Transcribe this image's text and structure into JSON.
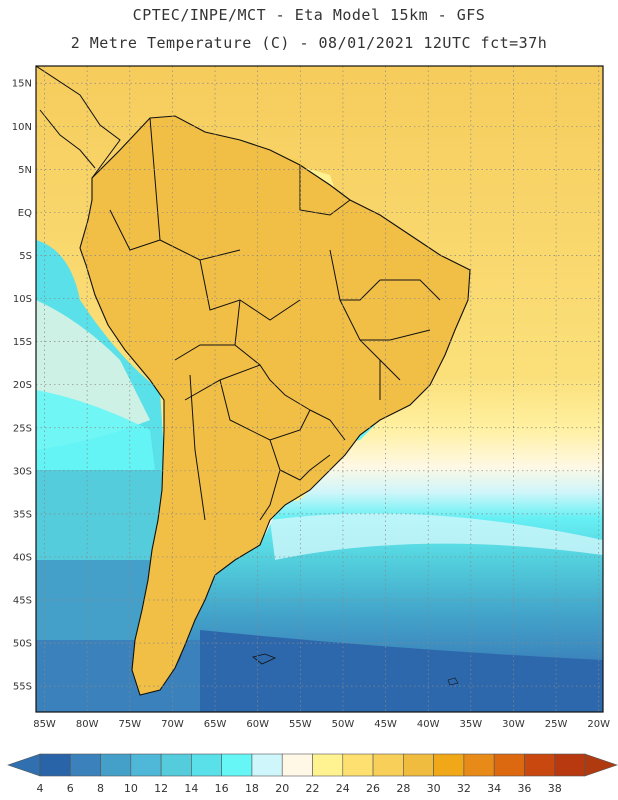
{
  "header": {
    "title_line1": "CPTEC/INPE/MCT -  Eta Model 15km - GFS",
    "title_line2": "2 Metre Temperature (C) - 08/01/2021 12UTC fct=37h"
  },
  "map": {
    "region": "South America",
    "lat_labels": [
      "15N",
      "10N",
      "5N",
      "EQ",
      "5S",
      "10S",
      "15S",
      "20S",
      "25S",
      "30S",
      "35S",
      "40S",
      "45S",
      "50S",
      "55S"
    ],
    "lat_values": [
      15,
      10,
      5,
      0,
      -5,
      -10,
      -15,
      -20,
      -25,
      -30,
      -35,
      -40,
      -45,
      -50,
      -55
    ],
    "lon_labels": [
      "85W",
      "80W",
      "75W",
      "70W",
      "65W",
      "60W",
      "55W",
      "50W",
      "45W",
      "40W",
      "35W",
      "30W",
      "25W",
      "20W"
    ],
    "lon_values": [
      -85,
      -80,
      -75,
      -70,
      -65,
      -60,
      -55,
      -50,
      -45,
      -40,
      -35,
      -30,
      -25,
      -20
    ],
    "lat_range": [
      -58,
      17
    ],
    "lon_range": [
      -86,
      -19.5
    ]
  },
  "colorbar": {
    "labels": [
      "4",
      "6",
      "8",
      "10",
      "12",
      "14",
      "16",
      "18",
      "20",
      "22",
      "24",
      "26",
      "28",
      "30",
      "32",
      "34",
      "36",
      "38"
    ],
    "colors": [
      "#2a64a8",
      "#3b82bc",
      "#44a0c8",
      "#4fb8d8",
      "#54ccdc",
      "#5ae0e8",
      "#66f6f6",
      "#cff6fa",
      "#fff8e6",
      "#fff290",
      "#fde070",
      "#f8cf58",
      "#f0bc40",
      "#f0a818",
      "#e88a18",
      "#dc6810",
      "#c84810",
      "#b83810"
    ],
    "end_low": "#3070b0",
    "end_high": "#b03a10"
  }
}
